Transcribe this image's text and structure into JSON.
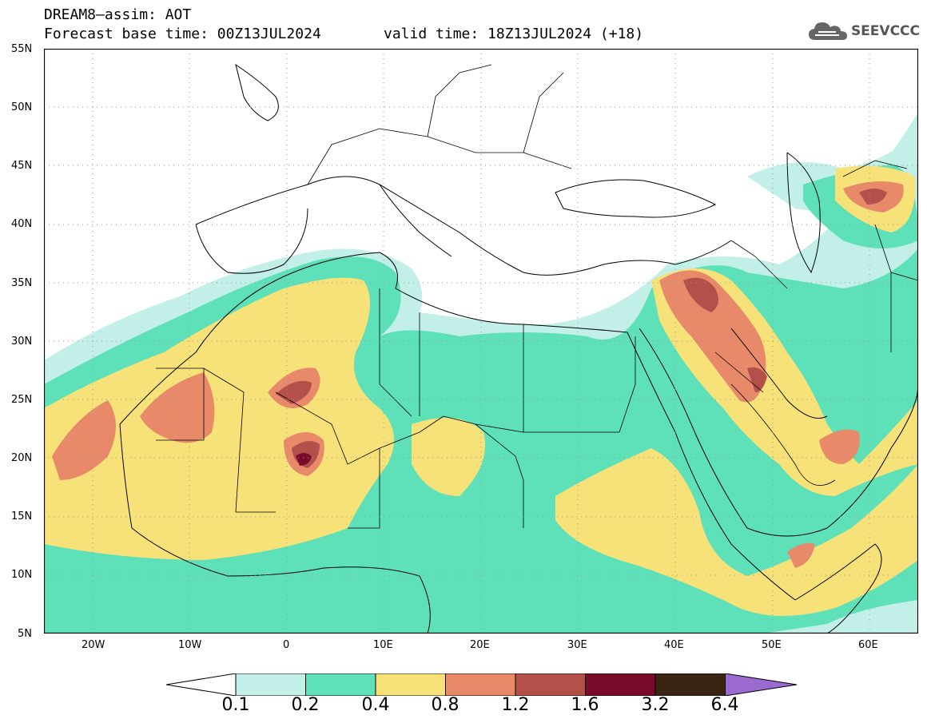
{
  "header": {
    "title_line1": "DREAM8–assim: AOT",
    "title_line2": "Forecast base time: 00Z13JUL2024",
    "valid_time": "valid time: 18Z13JUL2024 (+18)",
    "logo_text": "SEEVCCC"
  },
  "axes": {
    "lat_labels": [
      "55N",
      "50N",
      "45N",
      "40N",
      "35N",
      "30N",
      "25N",
      "20N",
      "15N",
      "10N",
      "5N"
    ],
    "lon_labels": [
      "20W",
      "10W",
      "0",
      "10E",
      "20E",
      "30E",
      "40E",
      "50E",
      "60E"
    ]
  },
  "legend": {
    "labels": [
      "0.1",
      "0.2",
      "0.4",
      "0.8",
      "1.2",
      "1.6",
      "3.2",
      "6.4"
    ],
    "colors": [
      "#ffffff",
      "#c2f0e8",
      "#5ee0b8",
      "#f7e27a",
      "#e8896a",
      "#b3504a",
      "#7a0a2a",
      "#3b2414",
      "#9a6ad0"
    ]
  },
  "map_data": {
    "variable": "AOT",
    "lon_range": [
      -25,
      65
    ],
    "lat_range": [
      5,
      55
    ]
  }
}
